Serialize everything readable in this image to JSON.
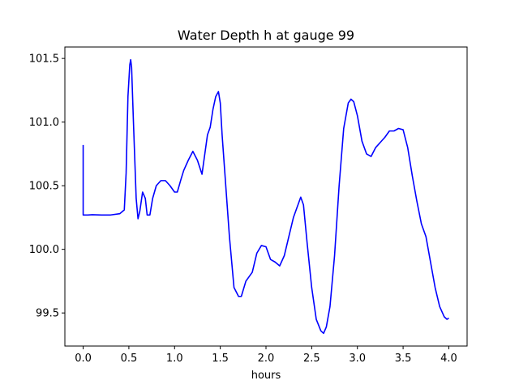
{
  "chart_data": {
    "type": "line",
    "title": "Water Depth h at gauge 99",
    "xlabel": "hours",
    "ylabel": "",
    "xlim": [
      -0.2,
      4.2
    ],
    "ylim": [
      99.24,
      101.59
    ],
    "xticks": [
      0.0,
      0.5,
      1.0,
      1.5,
      2.0,
      2.5,
      3.0,
      3.5,
      4.0
    ],
    "xtick_labels": [
      "0.0",
      "0.5",
      "1.0",
      "1.5",
      "2.0",
      "2.5",
      "3.0",
      "3.5",
      "4.0"
    ],
    "yticks": [
      99.5,
      100.0,
      100.5,
      101.0,
      101.5
    ],
    "ytick_labels": [
      "99.5",
      "100.0",
      "100.5",
      "101.0",
      "101.5"
    ],
    "grid": false,
    "series": [
      {
        "color": "#0000ff",
        "x": [
          0.0,
          0.0,
          0.05,
          0.1,
          0.2,
          0.3,
          0.4,
          0.45,
          0.47,
          0.49,
          0.51,
          0.52,
          0.53,
          0.55,
          0.58,
          0.6,
          0.62,
          0.65,
          0.68,
          0.7,
          0.73,
          0.76,
          0.8,
          0.85,
          0.9,
          0.95,
          1.0,
          1.03,
          1.07,
          1.1,
          1.15,
          1.2,
          1.25,
          1.3,
          1.36,
          1.39,
          1.42,
          1.45,
          1.48,
          1.5,
          1.52,
          1.55,
          1.6,
          1.65,
          1.7,
          1.73,
          1.78,
          1.85,
          1.9,
          1.95,
          2.0,
          2.05,
          2.1,
          2.15,
          2.2,
          2.25,
          2.3,
          2.35,
          2.38,
          2.41,
          2.45,
          2.5,
          2.55,
          2.6,
          2.63,
          2.66,
          2.7,
          2.75,
          2.8,
          2.85,
          2.9,
          2.93,
          2.96,
          3.0,
          3.05,
          3.1,
          3.15,
          3.2,
          3.25,
          3.3,
          3.35,
          3.4,
          3.45,
          3.5,
          3.55,
          3.6,
          3.65,
          3.7,
          3.75,
          3.8,
          3.85,
          3.9,
          3.95,
          3.98,
          4.0
        ],
        "y": [
          100.82,
          100.27,
          100.27,
          100.272,
          100.27,
          100.27,
          100.28,
          100.31,
          100.6,
          101.2,
          101.45,
          101.49,
          101.43,
          101.0,
          100.4,
          100.24,
          100.3,
          100.45,
          100.4,
          100.27,
          100.27,
          100.4,
          100.5,
          100.54,
          100.54,
          100.5,
          100.45,
          100.45,
          100.55,
          100.62,
          100.7,
          100.77,
          100.7,
          100.59,
          100.9,
          100.96,
          101.1,
          101.2,
          101.24,
          101.15,
          100.9,
          100.6,
          100.1,
          99.7,
          99.63,
          99.63,
          99.75,
          99.82,
          99.97,
          100.03,
          100.02,
          99.92,
          99.9,
          99.87,
          99.95,
          100.1,
          100.25,
          100.35,
          100.41,
          100.35,
          100.05,
          99.7,
          99.45,
          99.36,
          99.34,
          99.39,
          99.55,
          99.95,
          100.5,
          100.95,
          101.15,
          101.18,
          101.16,
          101.05,
          100.85,
          100.75,
          100.73,
          100.8,
          100.84,
          100.88,
          100.93,
          100.93,
          100.95,
          100.94,
          100.8,
          100.58,
          100.38,
          100.2,
          100.1,
          99.9,
          99.7,
          99.55,
          99.47,
          99.45,
          99.46
        ]
      }
    ]
  }
}
